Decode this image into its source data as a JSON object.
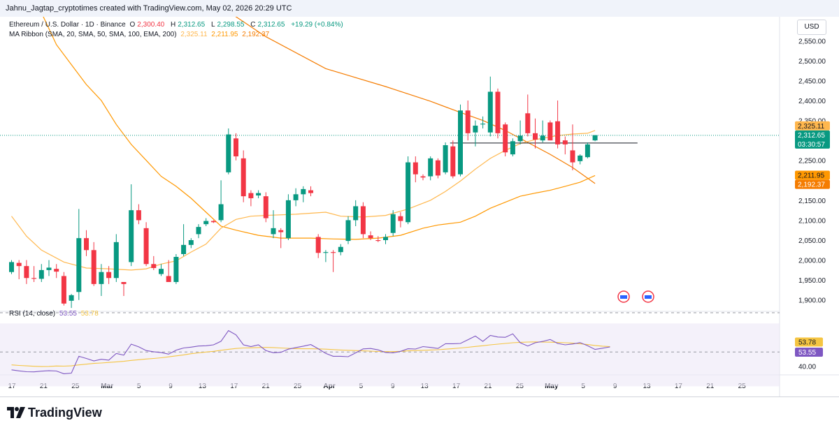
{
  "header": {
    "creator_text": "Jahnu_Jagtap_cryptotimes created with TradingView.com, May 02, 2026 20:29 UTC"
  },
  "legend": {
    "symbol": "Ethereum / U.S. Dollar · 1D · Binance",
    "o_label": "O",
    "o_value": "2,300.40",
    "h_label": "H",
    "h_value": "2,312.65",
    "l_label": "L",
    "l_value": "2,298.55",
    "c_label": "C",
    "c_value": "2,312.65",
    "change": "+19.29 (+0.84%)",
    "ma_title": "MA Ribbon (SMA, 20, SMA, 50, SMA, 100, EMA, 200)",
    "ma_values": [
      "2,325.11",
      "2,211.95",
      "2,192.37"
    ],
    "rsi_title": "RSI (14, close)",
    "rsi_values": [
      "53.55",
      "53.78"
    ]
  },
  "currency_button": "USD",
  "footer": {
    "brand": "TradingView"
  },
  "colors": {
    "up": "#089981",
    "down": "#f23645",
    "ma_yellow": "#ffb74d",
    "ma_orange": "#ff9800",
    "ma_deep": "#f57c00",
    "rsi_line": "#7e57c2",
    "rsi_ma": "#f5c542",
    "rsi_fill": "#ede7f6"
  },
  "chart_data": [
    {
      "type": "candlestick",
      "title": "Ethereum / U.S. Dollar · 1D · Binance",
      "ylabel": "USD",
      "ylim": [
        1875,
        2610
      ],
      "x_ticks": [
        "17",
        "21",
        "25",
        "Mar",
        "5",
        "9",
        "13",
        "17",
        "21",
        "25",
        "Apr",
        "5",
        "9",
        "13",
        "17",
        "21",
        "25",
        "May",
        "5",
        "9",
        "13",
        "17",
        "21",
        "25"
      ],
      "y_ticks": [
        {
          "value": 2550,
          "label": "2,550.00"
        },
        {
          "value": 2500,
          "label": "2,500.00"
        },
        {
          "value": 2450,
          "label": "2,450.00"
        },
        {
          "value": 2400,
          "label": "2,400.00"
        },
        {
          "value": 2350,
          "label": "2,350.00"
        },
        {
          "value": 2250,
          "label": "2,250.00"
        },
        {
          "value": 2150,
          "label": "2,150.00"
        },
        {
          "value": 2100,
          "label": "2,100.00"
        },
        {
          "value": 2050,
          "label": "2,050.00"
        },
        {
          "value": 2000,
          "label": "2,000.00"
        },
        {
          "value": 1950,
          "label": "1,950.00"
        },
        {
          "value": 1900,
          "label": "1,900.00"
        }
      ],
      "candles": [
        {
          "o": 1970,
          "h": 2000,
          "l": 1965,
          "c": 1995
        },
        {
          "o": 1993,
          "h": 2000,
          "l": 1952,
          "c": 1985
        },
        {
          "o": 1985,
          "h": 2000,
          "l": 1940,
          "c": 1955
        },
        {
          "o": 1955,
          "h": 1985,
          "l": 1945,
          "c": 1953
        },
        {
          "o": 1953,
          "h": 1990,
          "l": 1945,
          "c": 1975
        },
        {
          "o": 1975,
          "h": 2000,
          "l": 1960,
          "c": 1981
        },
        {
          "o": 1978,
          "h": 1990,
          "l": 1955,
          "c": 1971
        },
        {
          "o": 1960,
          "h": 1970,
          "l": 1886,
          "c": 1891
        },
        {
          "o": 1898,
          "h": 1915,
          "l": 1880,
          "c": 1912
        },
        {
          "o": 1920,
          "h": 2128,
          "l": 1900,
          "c": 2055
        },
        {
          "o": 2055,
          "h": 2075,
          "l": 2010,
          "c": 2025
        },
        {
          "o": 2025,
          "h": 2045,
          "l": 1935,
          "c": 1940
        },
        {
          "o": 1940,
          "h": 1990,
          "l": 1910,
          "c": 1970
        },
        {
          "o": 1970,
          "h": 1985,
          "l": 1940,
          "c": 1955
        },
        {
          "o": 1955,
          "h": 2065,
          "l": 1945,
          "c": 2045
        },
        {
          "o": 1945,
          "h": 1945,
          "l": 1910,
          "c": 1940
        },
        {
          "o": 1995,
          "h": 2190,
          "l": 1985,
          "c": 2125
        },
        {
          "o": 2125,
          "h": 2140,
          "l": 2090,
          "c": 2100
        },
        {
          "o": 2080,
          "h": 2095,
          "l": 1985,
          "c": 1990
        },
        {
          "o": 1990,
          "h": 2010,
          "l": 1975,
          "c": 1980
        },
        {
          "o": 1965,
          "h": 1990,
          "l": 1960,
          "c": 1978
        },
        {
          "o": 1960,
          "h": 2000,
          "l": 1945,
          "c": 1945
        },
        {
          "o": 1945,
          "h": 2015,
          "l": 1940,
          "c": 2008
        },
        {
          "o": 2015,
          "h": 2090,
          "l": 2010,
          "c": 2038
        },
        {
          "o": 2038,
          "h": 2055,
          "l": 2030,
          "c": 2050
        },
        {
          "o": 2065,
          "h": 2090,
          "l": 2055,
          "c": 2083
        },
        {
          "o": 2090,
          "h": 2105,
          "l": 2085,
          "c": 2098
        },
        {
          "o": 2098,
          "h": 2100,
          "l": 2093,
          "c": 2095
        },
        {
          "o": 2100,
          "h": 2200,
          "l": 2095,
          "c": 2140
        },
        {
          "o": 2220,
          "h": 2330,
          "l": 2215,
          "c": 2315
        },
        {
          "o": 2305,
          "h": 2318,
          "l": 2250,
          "c": 2260
        },
        {
          "o": 2255,
          "h": 2275,
          "l": 2145,
          "c": 2160
        },
        {
          "o": 2168,
          "h": 2175,
          "l": 2135,
          "c": 2155
        },
        {
          "o": 2162,
          "h": 2175,
          "l": 2155,
          "c": 2168
        },
        {
          "o": 2160,
          "h": 2170,
          "l": 2095,
          "c": 2105
        },
        {
          "o": 2065,
          "h": 2125,
          "l": 2055,
          "c": 2080
        },
        {
          "o": 2075,
          "h": 2080,
          "l": 2030,
          "c": 2070
        },
        {
          "o": 2055,
          "h": 2165,
          "l": 2050,
          "c": 2150
        },
        {
          "o": 2150,
          "h": 2180,
          "l": 2135,
          "c": 2165
        },
        {
          "o": 2165,
          "h": 2185,
          "l": 2145,
          "c": 2178
        },
        {
          "o": 2175,
          "h": 2185,
          "l": 2160,
          "c": 2168
        },
        {
          "o": 2058,
          "h": 2065,
          "l": 2005,
          "c": 2018
        },
        {
          "o": 2018,
          "h": 2025,
          "l": 1995,
          "c": 2020
        },
        {
          "o": 2020,
          "h": 2025,
          "l": 1970,
          "c": 2018
        },
        {
          "o": 2020,
          "h": 2040,
          "l": 2012,
          "c": 2033
        },
        {
          "o": 2048,
          "h": 2110,
          "l": 2040,
          "c": 2100
        },
        {
          "o": 2100,
          "h": 2150,
          "l": 2085,
          "c": 2135
        },
        {
          "o": 2135,
          "h": 2145,
          "l": 2055,
          "c": 2065
        },
        {
          "o": 2062,
          "h": 2072,
          "l": 2050,
          "c": 2055
        },
        {
          "o": 2050,
          "h": 2060,
          "l": 2045,
          "c": 2048
        },
        {
          "o": 2050,
          "h": 2065,
          "l": 2040,
          "c": 2058
        },
        {
          "o": 2068,
          "h": 2125,
          "l": 2060,
          "c": 2115
        },
        {
          "o": 2110,
          "h": 2120,
          "l": 2082,
          "c": 2098
        },
        {
          "o": 2095,
          "h": 2260,
          "l": 2090,
          "c": 2245
        },
        {
          "o": 2245,
          "h": 2260,
          "l": 2195,
          "c": 2215
        },
        {
          "o": 2210,
          "h": 2215,
          "l": 2200,
          "c": 2207
        },
        {
          "o": 2210,
          "h": 2260,
          "l": 2200,
          "c": 2255
        },
        {
          "o": 2250,
          "h": 2255,
          "l": 2205,
          "c": 2212
        },
        {
          "o": 2220,
          "h": 2295,
          "l": 2215,
          "c": 2288
        },
        {
          "o": 2285,
          "h": 2300,
          "l": 2205,
          "c": 2210
        },
        {
          "o": 2215,
          "h": 2390,
          "l": 2210,
          "c": 2375
        },
        {
          "o": 2375,
          "h": 2400,
          "l": 2300,
          "c": 2318
        },
        {
          "o": 2320,
          "h": 2350,
          "l": 2285,
          "c": 2337
        },
        {
          "o": 2340,
          "h": 2360,
          "l": 2330,
          "c": 2342
        },
        {
          "o": 2320,
          "h": 2460,
          "l": 2310,
          "c": 2422
        },
        {
          "o": 2422,
          "h": 2430,
          "l": 2305,
          "c": 2318
        },
        {
          "o": 2340,
          "h": 2345,
          "l": 2260,
          "c": 2270
        },
        {
          "o": 2265,
          "h": 2305,
          "l": 2260,
          "c": 2298
        },
        {
          "o": 2298,
          "h": 2350,
          "l": 2290,
          "c": 2312
        },
        {
          "o": 2368,
          "h": 2415,
          "l": 2310,
          "c": 2318
        },
        {
          "o": 2318,
          "h": 2355,
          "l": 2280,
          "c": 2302
        },
        {
          "o": 2300,
          "h": 2350,
          "l": 2295,
          "c": 2312
        },
        {
          "o": 2345,
          "h": 2350,
          "l": 2300,
          "c": 2300
        },
        {
          "o": 2348,
          "h": 2400,
          "l": 2280,
          "c": 2290
        },
        {
          "o": 2300,
          "h": 2310,
          "l": 2265,
          "c": 2290
        },
        {
          "o": 2275,
          "h": 2340,
          "l": 2225,
          "c": 2245
        },
        {
          "o": 2248,
          "h": 2265,
          "l": 2240,
          "c": 2262
        },
        {
          "o": 2258,
          "h": 2295,
          "l": 2255,
          "c": 2290
        },
        {
          "o": 2300,
          "h": 2313,
          "l": 2298,
          "c": 2313
        }
      ],
      "ma_ribbon": {
        "labels": [
          "2,325.11",
          "2,211.95",
          "2,192.37"
        ],
        "ma20": [
          [
            0,
            2110
          ],
          [
            2,
            2060
          ],
          [
            4,
            2025
          ],
          [
            7,
            1995
          ],
          [
            10,
            1980
          ],
          [
            13,
            1978
          ],
          [
            16,
            1975
          ],
          [
            18,
            1978
          ],
          [
            20,
            1990
          ],
          [
            22,
            1998
          ],
          [
            24,
            2020
          ],
          [
            26,
            2040
          ],
          [
            28,
            2080
          ],
          [
            30,
            2102
          ],
          [
            32,
            2110
          ],
          [
            34,
            2112
          ],
          [
            38,
            2115
          ],
          [
            42,
            2120
          ],
          [
            44,
            2110
          ],
          [
            47,
            2108
          ],
          [
            50,
            2112
          ],
          [
            53,
            2128
          ],
          [
            56,
            2150
          ],
          [
            58,
            2172
          ],
          [
            60,
            2198
          ],
          [
            62,
            2228
          ],
          [
            64,
            2255
          ],
          [
            66,
            2275
          ],
          [
            68,
            2292
          ],
          [
            70,
            2302
          ],
          [
            73,
            2312
          ],
          [
            75,
            2316
          ],
          [
            77,
            2318
          ],
          [
            78,
            2325
          ]
        ],
        "ma50": [
          [
            0,
            2660
          ],
          [
            4,
            2620
          ],
          [
            6,
            2540
          ],
          [
            8,
            2490
          ],
          [
            10,
            2440
          ],
          [
            12,
            2400
          ],
          [
            14,
            2340
          ],
          [
            16,
            2290
          ],
          [
            18,
            2250
          ],
          [
            20,
            2210
          ],
          [
            22,
            2185
          ],
          [
            24,
            2155
          ],
          [
            26,
            2120
          ],
          [
            28,
            2085
          ],
          [
            30,
            2075
          ],
          [
            33,
            2062
          ],
          [
            36,
            2055
          ],
          [
            40,
            2055
          ],
          [
            43,
            2053
          ],
          [
            46,
            2052
          ],
          [
            49,
            2055
          ],
          [
            52,
            2062
          ],
          [
            55,
            2080
          ],
          [
            57,
            2088
          ],
          [
            60,
            2095
          ],
          [
            62,
            2110
          ],
          [
            64,
            2130
          ],
          [
            66,
            2145
          ],
          [
            68,
            2160
          ],
          [
            70,
            2168
          ],
          [
            72,
            2175
          ],
          [
            74,
            2185
          ],
          [
            76,
            2195
          ],
          [
            78,
            2212
          ]
        ],
        "ma100": [
          [
            26,
            2660
          ],
          [
            34,
            2560
          ],
          [
            42,
            2480
          ],
          [
            50,
            2435
          ],
          [
            56,
            2398
          ],
          [
            60,
            2370
          ],
          [
            63,
            2350
          ],
          [
            66,
            2325
          ],
          [
            69,
            2295
          ],
          [
            72,
            2265
          ],
          [
            75,
            2232
          ],
          [
            78,
            2192
          ]
        ]
      },
      "last_price": 2312.65,
      "last_price_label": "2,312.65",
      "countdown": "03:30:57",
      "reference_price": 2293.36
    },
    {
      "type": "line",
      "title": "RSI (14, close)",
      "ylim": [
        34,
        78
      ],
      "y_ticks": [
        {
          "value": 40,
          "label": "40.00"
        }
      ],
      "band": [
        30,
        70
      ],
      "series": [
        {
          "values": [
            37.5,
            36.8,
            36.2,
            36.1,
            36.6,
            36.9,
            36.7,
            34.8,
            35.2,
            47.0,
            45.5,
            43.8,
            44.9,
            44.3,
            49.0,
            47.8,
            55.5,
            53.6,
            51.0,
            50.2,
            49.6,
            48.5,
            51.3,
            52.8,
            53.4,
            54.2,
            54.4,
            55.0,
            57.5,
            65.0,
            62.0,
            55.0,
            53.8,
            55.0,
            51.0,
            49.5,
            49.8,
            52.0,
            53.1,
            54.1,
            55.2,
            52.3,
            49.0,
            47.0,
            47.0,
            46.7,
            49.4,
            52.2,
            52.5,
            51.5,
            49.7,
            49.4,
            50.5,
            52.3,
            52.1,
            53.8,
            53.2,
            52.5,
            55.8,
            55.8,
            56.0,
            58.6,
            61.2,
            57.4,
            61.6,
            60.5,
            60.3,
            62.7,
            56.5,
            54.2,
            56.5,
            57.4,
            58.8,
            56.0,
            55.0,
            55.6,
            56.6,
            54.4,
            51.8,
            52.7,
            53.55
          ]
        },
        {
          "values": [
            41.0,
            40.6,
            40.3,
            40.0,
            39.8,
            39.9,
            40.2,
            40.1,
            40.3,
            41.0,
            41.5,
            42.0,
            42.3,
            42.7,
            43.1,
            43.5,
            44.1,
            44.6,
            45.1,
            45.5,
            46.0,
            46.6,
            47.3,
            48.0,
            48.8,
            49.4,
            50.0,
            50.5,
            51.2,
            51.9,
            52.5,
            52.8,
            52.9,
            53.1,
            53.2,
            53.1,
            52.8,
            52.6,
            52.4,
            52.3,
            52.3,
            52.2,
            52.0,
            51.7,
            51.4,
            51.2,
            51.0,
            50.8,
            50.6,
            50.4,
            50.3,
            50.3,
            50.5,
            50.8,
            51.0,
            51.2,
            51.4,
            51.6,
            52.0,
            52.4,
            52.8,
            53.3,
            53.9,
            54.4,
            55.0,
            55.5,
            56.0,
            56.5,
            56.8,
            57.0,
            57.1,
            57.0,
            56.9,
            56.7,
            56.5,
            56.2,
            55.8,
            55.2,
            54.6,
            54.1,
            53.78
          ]
        }
      ],
      "value_labels": [
        "53.78",
        "53.55"
      ]
    }
  ]
}
